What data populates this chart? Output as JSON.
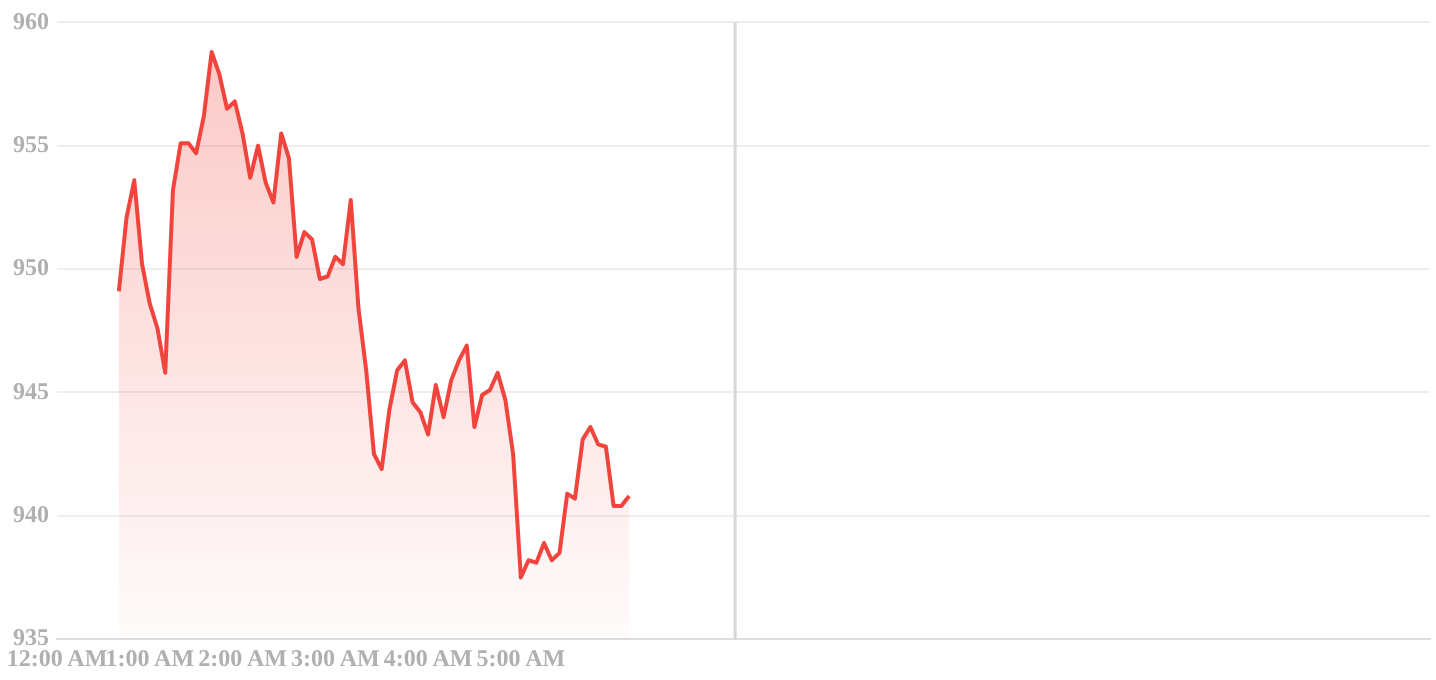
{
  "chart_data": {
    "type": "area",
    "x": [
      0.667,
      0.75,
      0.833,
      0.917,
      1,
      1.083,
      1.167,
      1.25,
      1.333,
      1.417,
      1.5,
      1.583,
      1.667,
      1.75,
      1.833,
      1.917,
      2,
      2.083,
      2.167,
      2.25,
      2.333,
      2.417,
      2.5,
      2.583,
      2.667,
      2.75,
      2.833,
      2.917,
      3,
      3.083,
      3.167,
      3.25,
      3.333,
      3.417,
      3.5,
      3.583,
      3.667,
      3.75,
      3.833,
      3.917,
      4,
      4.083,
      4.167,
      4.25,
      4.333,
      4.417,
      4.5,
      4.583,
      4.667,
      4.75,
      4.833,
      4.917,
      5,
      5.083,
      5.167,
      5.25,
      5.333,
      5.417,
      5.5,
      5.583,
      5.667,
      5.75,
      5.833,
      5.917,
      6,
      6.083,
      6.167
    ],
    "series": [
      {
        "color": "#f0443c",
        "values": [
          949.1,
          952.1,
          953.6,
          950.2,
          948.6,
          947.6,
          945.8,
          953.2,
          955.1,
          955.1,
          954.7,
          956.2,
          958.8,
          957.9,
          956.5,
          956.8,
          955.5,
          953.7,
          955.0,
          953.5,
          952.7,
          955.5,
          954.5,
          950.5,
          951.5,
          951.2,
          949.6,
          949.7,
          950.5,
          950.2,
          952.8,
          948.4,
          945.9,
          942.5,
          941.9,
          944.3,
          945.9,
          946.3,
          944.6,
          944.2,
          943.3,
          945.3,
          944.0,
          945.5,
          946.3,
          946.9,
          943.6,
          944.9,
          945.1,
          945.8,
          944.7,
          942.5,
          937.5,
          938.2,
          938.1,
          938.9,
          938.2,
          938.5,
          940.9,
          940.7,
          943.1,
          943.6,
          942.9,
          942.8,
          940.4,
          940.4,
          940.8
        ]
      }
    ],
    "xlim": [
      0,
      14.8
    ],
    "xticks": [
      {
        "value": 0,
        "label": "12:00 AM"
      },
      {
        "value": 1,
        "label": "1:00 AM"
      },
      {
        "value": 2,
        "label": "2:00 AM"
      },
      {
        "value": 3,
        "label": "3:00 AM"
      },
      {
        "value": 4,
        "label": "4:00 AM"
      },
      {
        "value": 5,
        "label": "5:00 AM"
      }
    ],
    "ylim": [
      935,
      960
    ],
    "yticks": [
      935,
      940,
      945,
      950,
      955,
      960
    ],
    "ref_lines": [
      {
        "axis": "x",
        "value": 7.31,
        "color": "#d8d8d8"
      }
    ],
    "grid": "y",
    "legend": false,
    "marker": "none",
    "line_style": "solid"
  }
}
